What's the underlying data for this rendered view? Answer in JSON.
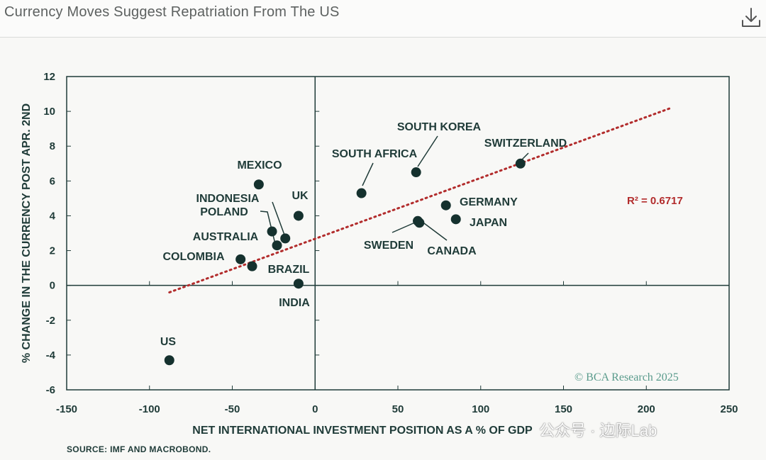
{
  "header": {
    "title": "Currency Moves Suggest Repatriation From The US",
    "download_icon": "download-icon"
  },
  "chart_data": {
    "type": "scatter",
    "xlabel": "NET INTERNATIONAL INVESTMENT POSITION AS A % OF GDP",
    "ylabel": "% CHANGE IN THE CURRENCY POST APR. 2ND",
    "xlim": [
      -150,
      250
    ],
    "ylim": [
      -6,
      12
    ],
    "x_ticks": [
      -150,
      -100,
      -50,
      0,
      50,
      100,
      150,
      200,
      250
    ],
    "y_ticks": [
      -6,
      -4,
      -2,
      0,
      2,
      4,
      6,
      8,
      10,
      12
    ],
    "grid": false,
    "points": [
      {
        "label": "US",
        "x": -88,
        "y": -4.3
      },
      {
        "label": "MEXICO",
        "x": -34,
        "y": 5.8
      },
      {
        "label": "INDONESIA",
        "x": -18,
        "y": 2.7
      },
      {
        "label": "POLAND",
        "x": -23,
        "y": 2.3
      },
      {
        "label": "UK",
        "x": -10,
        "y": 4.0
      },
      {
        "label": "AUSTRALIA",
        "x": -26,
        "y": 3.1
      },
      {
        "label": "COLOMBIA",
        "x": -45,
        "y": 1.5
      },
      {
        "label": "BRAZIL",
        "x": -38,
        "y": 1.1
      },
      {
        "label": "INDIA",
        "x": -10,
        "y": 0.1
      },
      {
        "label": "SOUTH AFRICA",
        "x": 28,
        "y": 5.3
      },
      {
        "label": "SOUTH KOREA",
        "x": 61,
        "y": 6.5
      },
      {
        "label": "SWITZERLAND",
        "x": 124,
        "y": 7.0
      },
      {
        "label": "GERMANY",
        "x": 79,
        "y": 4.6
      },
      {
        "label": "JAPAN",
        "x": 85,
        "y": 3.8
      },
      {
        "label": "SWEDEN",
        "x": 62,
        "y": 3.7
      },
      {
        "label": "CANADA",
        "x": 63,
        "y": 3.6
      }
    ],
    "trendline": {
      "x": [
        -88,
        215
      ],
      "y": [
        -0.4,
        10.2
      ],
      "color": "#b22c2c"
    },
    "annotation": "R² = 0.6717",
    "watermark": "© BCA Research 2025",
    "point_color": "#15312e",
    "axis_color": "#1f3b38"
  },
  "footer": {
    "source": "SOURCE: IMF AND MACROBOND.",
    "overlay_watermark": "公众号 · 边际Lab"
  }
}
